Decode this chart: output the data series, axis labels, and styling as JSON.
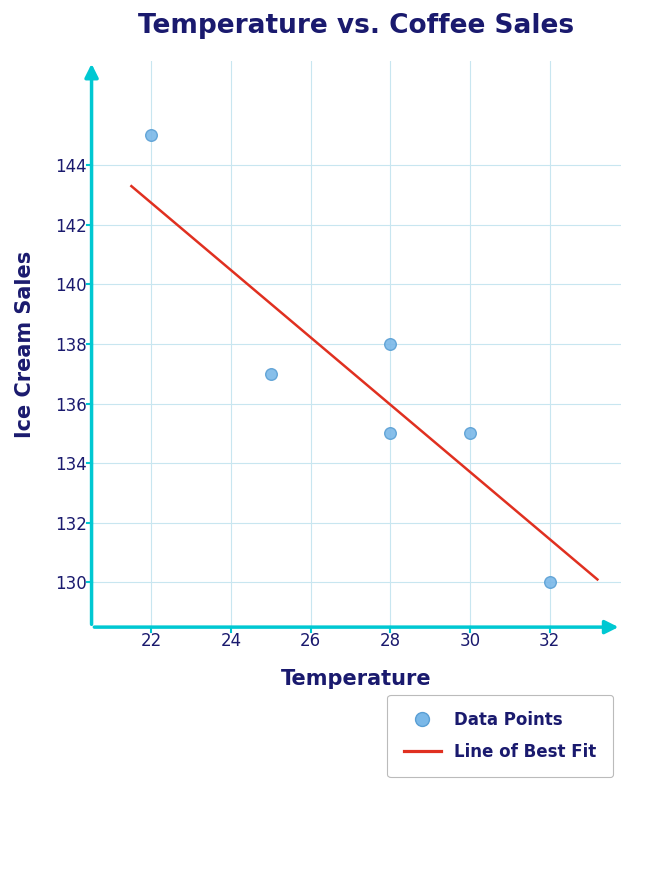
{
  "title": "Temperature vs. Coffee Sales",
  "xlabel": "Temperature",
  "ylabel": "Ice Cream Sales",
  "title_color": "#1a1a6e",
  "axis_color": "#00c8d2",
  "label_color": "#1a1a6e",
  "grid_color": "#c8e6f0",
  "background_color": "#ffffff",
  "data_x": [
    22,
    25,
    28,
    28,
    30,
    32
  ],
  "data_y": [
    145,
    137,
    138,
    135,
    135,
    130
  ],
  "point_color": "#7ab8e8",
  "point_edge_color": "#5a9fd4",
  "line_color": "#e03020",
  "line_x": [
    21.5,
    33.2
  ],
  "line_y": [
    143.3,
    130.1
  ],
  "xlim": [
    20.5,
    33.8
  ],
  "ylim": [
    128.5,
    147.5
  ],
  "xticks": [
    22,
    24,
    26,
    28,
    30,
    32
  ],
  "yticks": [
    130,
    132,
    134,
    136,
    138,
    140,
    142,
    144
  ],
  "tick_color": "#1a1a6e",
  "tick_fontsize": 12,
  "label_fontsize": 15,
  "title_fontsize": 19,
  "legend_point_label": "Data Points",
  "legend_line_label": "Line of Best Fit",
  "point_size": 70,
  "line_width": 1.8,
  "figsize": [
    6.54,
    8.71
  ]
}
